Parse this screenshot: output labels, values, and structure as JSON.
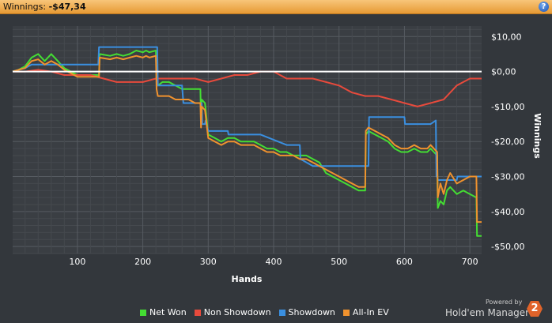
{
  "header": {
    "label": "Winnings:",
    "value": "-$47,34",
    "help_symbol": "?"
  },
  "colors": {
    "background": "#33373c",
    "plot_bg": "#3a3e43",
    "grid": "#50555b",
    "zero_line": "#ffffff",
    "header": "#f0ad52"
  },
  "chart_data": {
    "type": "line",
    "xlabel": "Hands",
    "ylabel": "Winnings",
    "xlim": [
      1,
      718
    ],
    "ylim": [
      -52,
      13
    ],
    "x_ticks": [
      100,
      200,
      300,
      400,
      500,
      600,
      700
    ],
    "x_tick_labels": [
      "100",
      "200",
      "300",
      "400",
      "500",
      "600",
      "700"
    ],
    "y_ticks": [
      10,
      0,
      -10,
      -20,
      -30,
      -40,
      -50
    ],
    "y_tick_labels": [
      "$10,00",
      "$0,00",
      "-$10,00",
      "-$20,00",
      "-$30,00",
      "-$40,00",
      "-$50,00"
    ],
    "grid": true,
    "legend_position": "bottom",
    "series": [
      {
        "name": "Net Won",
        "color": "#44dd33",
        "x": [
          1,
          10,
          20,
          30,
          40,
          50,
          60,
          70,
          80,
          90,
          100,
          110,
          120,
          133,
          134,
          150,
          160,
          170,
          180,
          190,
          200,
          205,
          210,
          220,
          221,
          222,
          223,
          230,
          240,
          250,
          260,
          270,
          280,
          288,
          289,
          290,
          295,
          300,
          310,
          320,
          330,
          340,
          350,
          360,
          370,
          380,
          390,
          400,
          410,
          420,
          430,
          440,
          450,
          460,
          470,
          480,
          490,
          500,
          510,
          520,
          530,
          540,
          541,
          545,
          555,
          565,
          575,
          585,
          595,
          605,
          615,
          625,
          635,
          640,
          645,
          650,
          651,
          655,
          660,
          665,
          670,
          680,
          690,
          700,
          710,
          711,
          715,
          718
        ],
        "y": [
          0,
          0.5,
          1.5,
          4,
          5,
          3,
          5,
          3,
          1,
          0,
          -1,
          -1,
          -1,
          -1,
          5,
          4.5,
          5,
          4.5,
          5,
          6,
          5.5,
          6,
          5.5,
          6,
          -2,
          -3,
          -4,
          -3,
          -3,
          -4,
          -5,
          -5,
          -5,
          -5,
          -14,
          -8,
          -9,
          -18,
          -19,
          -20,
          -19,
          -19,
          -20,
          -20,
          -20,
          -21,
          -22,
          -22,
          -23,
          -23,
          -24,
          -24,
          -24,
          -25,
          -26,
          -29,
          -30,
          -31,
          -32,
          -33,
          -34,
          -34,
          -18,
          -17,
          -18,
          -19,
          -20,
          -22,
          -23,
          -23,
          -22,
          -23,
          -23,
          -22,
          -23,
          -24,
          -39,
          -37,
          -38,
          -34,
          -33,
          -35,
          -34,
          -35,
          -36,
          -47,
          -47,
          -47
        ]
      },
      {
        "name": "Non Showdown",
        "color": "#e84a3c",
        "x": [
          1,
          20,
          40,
          60,
          80,
          100,
          120,
          140,
          160,
          180,
          200,
          220,
          240,
          260,
          280,
          300,
          320,
          340,
          360,
          380,
          400,
          420,
          440,
          460,
          480,
          500,
          520,
          540,
          560,
          580,
          600,
          620,
          640,
          660,
          680,
          700,
          718
        ],
        "y": [
          0,
          0,
          0.5,
          0,
          -1,
          -1,
          -1,
          -2,
          -3,
          -3,
          -3,
          -2,
          -2,
          -2,
          -2,
          -3,
          -2,
          -1,
          -1,
          0,
          0,
          -2,
          -2,
          -2,
          -3,
          -4,
          -6,
          -7,
          -7,
          -8,
          -9,
          -10,
          -9,
          -8,
          -4,
          -2,
          -2
        ]
      },
      {
        "name": "Showdown",
        "color": "#3a8fe0",
        "x": [
          1,
          20,
          30,
          60,
          80,
          110,
          132,
          133,
          190,
          222,
          223,
          260,
          262,
          275,
          290,
          291,
          295,
          296,
          300,
          330,
          331,
          380,
          420,
          440,
          441,
          460,
          545,
          546,
          600,
          601,
          640,
          648,
          649,
          650,
          651,
          680,
          681,
          710,
          718
        ],
        "y": [
          0,
          1,
          2,
          2,
          2,
          2,
          2,
          7,
          7,
          7,
          -4,
          -4,
          -9,
          -9,
          -9,
          -15,
          -15,
          -14,
          -17,
          -17,
          -18,
          -18,
          -21,
          -21,
          -25,
          -27,
          -27,
          -13,
          -13,
          -15,
          -15,
          -14,
          -30,
          -30,
          -31,
          -31,
          -30,
          -30,
          -30
        ]
      },
      {
        "name": "All-In EV",
        "color": "#f0922e",
        "x": [
          1,
          10,
          20,
          30,
          40,
          50,
          60,
          70,
          80,
          90,
          100,
          110,
          120,
          133,
          134,
          150,
          160,
          170,
          180,
          190,
          200,
          205,
          210,
          220,
          221,
          222,
          223,
          230,
          240,
          250,
          260,
          270,
          280,
          288,
          289,
          290,
          295,
          300,
          310,
          320,
          330,
          340,
          350,
          360,
          370,
          380,
          390,
          400,
          410,
          420,
          430,
          440,
          450,
          460,
          470,
          480,
          490,
          500,
          510,
          520,
          530,
          540,
          541,
          545,
          555,
          565,
          575,
          585,
          595,
          605,
          615,
          625,
          635,
          640,
          645,
          650,
          651,
          655,
          660,
          665,
          670,
          680,
          690,
          700,
          710,
          711,
          715,
          718
        ],
        "y": [
          0,
          0.5,
          1,
          3,
          3.5,
          2,
          3,
          2,
          0.5,
          -0.5,
          -1.5,
          -1.5,
          -1.5,
          -1.5,
          4,
          3.5,
          4,
          3.5,
          4,
          4.5,
          4,
          4.5,
          4,
          4.5,
          -5,
          -6,
          -7,
          -7,
          -7,
          -8,
          -8,
          -8,
          -9,
          -9,
          -16,
          -10,
          -11,
          -19,
          -20,
          -21,
          -20,
          -20,
          -21,
          -21,
          -21,
          -22,
          -23,
          -23,
          -24,
          -24,
          -24,
          -25,
          -25,
          -26,
          -27,
          -28,
          -29,
          -30,
          -31,
          -32,
          -33,
          -33,
          -17,
          -16,
          -17,
          -18,
          -19,
          -21,
          -22,
          -22,
          -21,
          -22,
          -22,
          -21,
          -22,
          -23,
          -36,
          -32,
          -35,
          -31,
          -29,
          -32,
          -31,
          -30,
          -30,
          -43,
          -43,
          -43
        ]
      }
    ]
  },
  "footer": {
    "powered_by": "Powered by",
    "brand": "Hold'em Manager",
    "logo_text": "2"
  }
}
